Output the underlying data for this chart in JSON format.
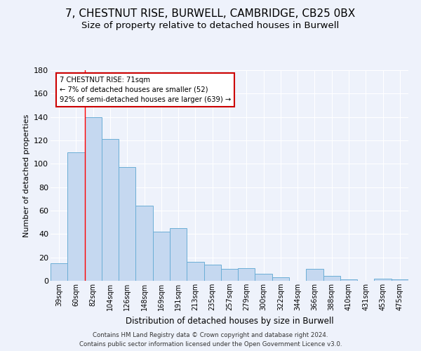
{
  "title": "7, CHESTNUT RISE, BURWELL, CAMBRIDGE, CB25 0BX",
  "subtitle": "Size of property relative to detached houses in Burwell",
  "xlabel": "Distribution of detached houses by size in Burwell",
  "ylabel": "Number of detached properties",
  "categories": [
    "39sqm",
    "60sqm",
    "82sqm",
    "104sqm",
    "126sqm",
    "148sqm",
    "169sqm",
    "191sqm",
    "213sqm",
    "235sqm",
    "257sqm",
    "279sqm",
    "300sqm",
    "322sqm",
    "344sqm",
    "366sqm",
    "388sqm",
    "410sqm",
    "431sqm",
    "453sqm",
    "475sqm"
  ],
  "values": [
    15,
    110,
    140,
    121,
    97,
    64,
    42,
    45,
    16,
    14,
    10,
    11,
    6,
    3,
    0,
    10,
    4,
    1,
    0,
    2,
    1
  ],
  "bar_color": "#c5d8f0",
  "bar_edge_color": "#6baed6",
  "ylim": [
    0,
    180
  ],
  "yticks": [
    0,
    20,
    40,
    60,
    80,
    100,
    120,
    140,
    160,
    180
  ],
  "red_line_x": 1.5,
  "annotation_title": "7 CHESTNUT RISE: 71sqm",
  "annotation_line1": "← 7% of detached houses are smaller (52)",
  "annotation_line2": "92% of semi-detached houses are larger (639) →",
  "annotation_box_color": "#ffffff",
  "annotation_box_edge": "#cc0000",
  "footer1": "Contains HM Land Registry data © Crown copyright and database right 2024.",
  "footer2": "Contains public sector information licensed under the Open Government Licence v3.0.",
  "background_color": "#eef2fb",
  "grid_color": "#ffffff",
  "title_fontsize": 11,
  "subtitle_fontsize": 9.5
}
